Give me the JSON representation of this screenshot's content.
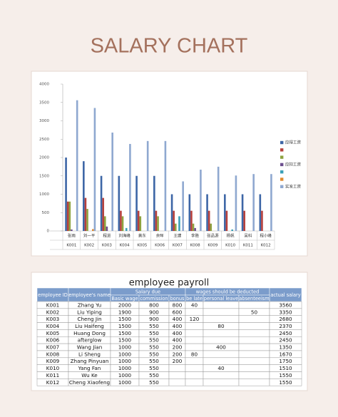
{
  "title": "SALARY CHART",
  "chart_data": {
    "type": "bar",
    "categories": [
      "张雨",
      "刘一平",
      "程进",
      "刘海峰",
      "黄东",
      "余晖",
      "王建",
      "李胜",
      "张品源",
      "杨帆",
      "吴科",
      "程小峰"
    ],
    "category_ids": [
      "K001",
      "K002",
      "K003",
      "K004",
      "K005",
      "K006",
      "K007",
      "K008",
      "K009",
      "K010",
      "K011",
      "K012"
    ],
    "series": [
      {
        "name": "应得工资",
        "color": "#3d66a6",
        "values": [
          2000,
          1900,
          1500,
          1500,
          1500,
          1500,
          1000,
          1000,
          1000,
          1000,
          1000,
          1000
        ]
      },
      {
        "name": null,
        "color": "#b6403c",
        "values": [
          800,
          900,
          900,
          550,
          550,
          550,
          550,
          550,
          550,
          550,
          550,
          550
        ]
      },
      {
        "name": null,
        "color": "#8ea23f",
        "values": [
          800,
          600,
          400,
          400,
          400,
          400,
          200,
          200,
          200,
          null,
          null,
          null
        ]
      },
      {
        "name": "应扣工资",
        "color": "#6c4f8f",
        "values": [
          40,
          null,
          120,
          null,
          null,
          null,
          null,
          80,
          null,
          null,
          null,
          null
        ]
      },
      {
        "name": null,
        "color": "#3aa0b8",
        "values": [
          null,
          null,
          null,
          80,
          null,
          null,
          400,
          null,
          null,
          40,
          null,
          null
        ]
      },
      {
        "name": null,
        "color": "#e08a2d",
        "values": [
          null,
          50,
          null,
          null,
          null,
          null,
          null,
          null,
          null,
          null,
          null,
          null
        ]
      },
      {
        "name": "实发工资",
        "color": "#8fa8d0",
        "values": [
          3560,
          3350,
          2680,
          2370,
          2450,
          2450,
          1350,
          1670,
          1750,
          1510,
          1550,
          1550
        ]
      }
    ],
    "ylim": [
      0,
      4000
    ],
    "yticks": [
      0,
      500,
      1000,
      1500,
      2000,
      2500,
      3000,
      3500,
      4000
    ],
    "grid": false,
    "legend": "right"
  },
  "table": {
    "title": "employee payroll",
    "header": {
      "employee_id": "employee ID",
      "name": "employee's name",
      "salary_due": "Salary due",
      "deducted": "wages should be deducted",
      "actual": "actual salary",
      "sub": [
        "Basic wage",
        "commission",
        "bonus",
        "be late",
        "personal leave",
        "absenteeism"
      ]
    },
    "rows": [
      [
        "K001",
        "Zhang Yu",
        2000,
        800,
        800,
        40,
        null,
        null,
        3560
      ],
      [
        "K002",
        "Liu Yiping",
        1900,
        900,
        600,
        null,
        null,
        50,
        3350
      ],
      [
        "K003",
        "Cheng Jin",
        1500,
        900,
        400,
        120,
        null,
        null,
        2680
      ],
      [
        "K004",
        "Liu Haifeng",
        1500,
        550,
        400,
        null,
        80,
        null,
        2370
      ],
      [
        "K005",
        "Huang Dong",
        1500,
        550,
        400,
        null,
        null,
        null,
        2450
      ],
      [
        "K006",
        "afterglow",
        1500,
        550,
        400,
        null,
        null,
        null,
        2450
      ],
      [
        "K007",
        "Wang Jian",
        1000,
        550,
        200,
        null,
        400,
        null,
        1350
      ],
      [
        "K008",
        "Li Sheng",
        1000,
        550,
        200,
        80,
        null,
        null,
        1670
      ],
      [
        "K009",
        "Zhang Pinyuan",
        1000,
        550,
        200,
        null,
        null,
        null,
        1750
      ],
      [
        "K010",
        "Yang Fan",
        1000,
        550,
        null,
        null,
        40,
        null,
        1510
      ],
      [
        "K011",
        "Wu Ke",
        1000,
        550,
        null,
        null,
        null,
        null,
        1550
      ],
      [
        "K012",
        "Cheng Xiaofeng",
        1000,
        550,
        null,
        null,
        null,
        null,
        1550
      ]
    ]
  }
}
